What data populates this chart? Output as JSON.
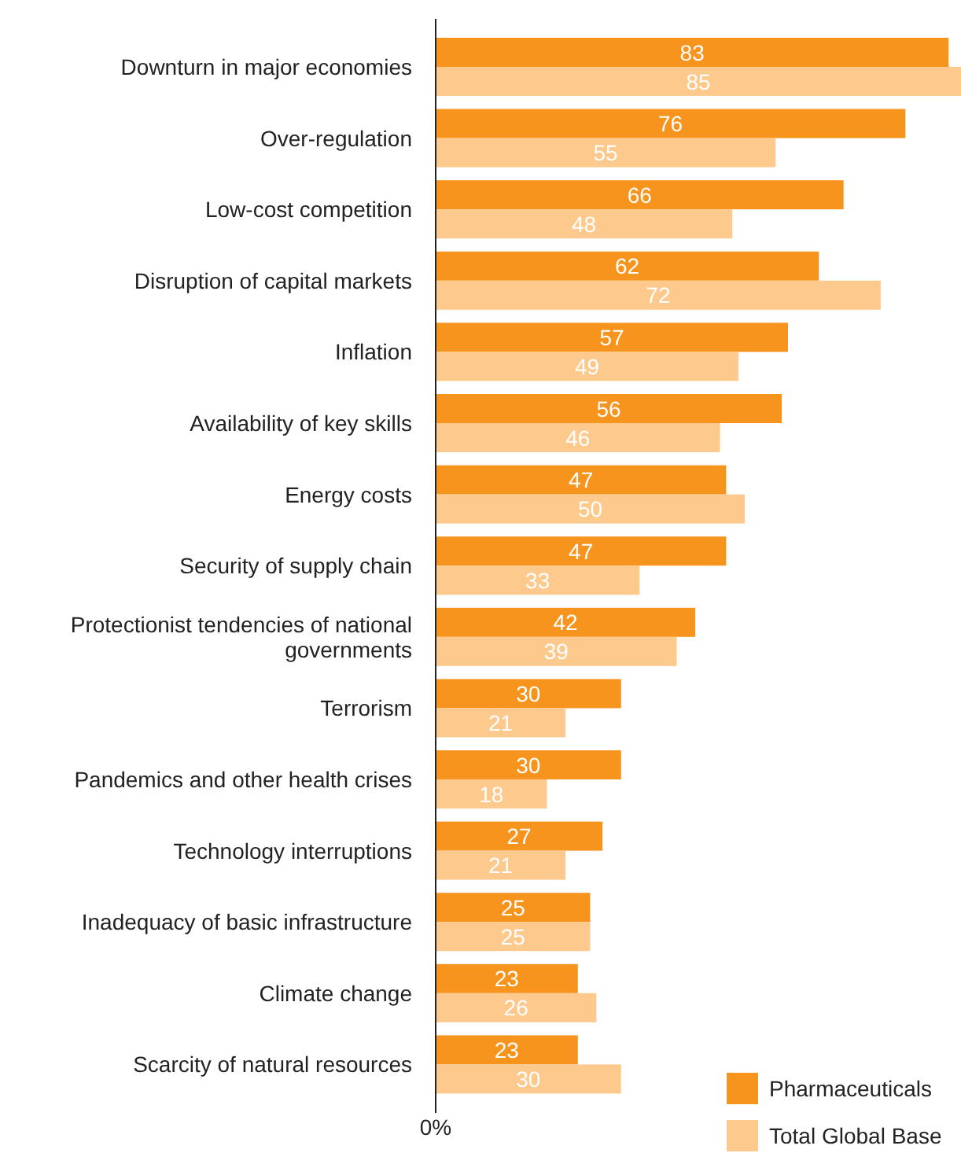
{
  "chart_data": {
    "type": "bar",
    "orientation": "horizontal",
    "categories": [
      "Downturn in major economies",
      "Over-regulation",
      "Low-cost competition",
      "Disruption of capital markets",
      "Inflation",
      "Availability of key skills",
      "Energy costs",
      "Security of supply chain",
      "Protectionist tendencies of national governments",
      "Terrorism",
      "Pandemics and other health crises",
      "Technology interruptions",
      "Inadequacy of basic infrastructure",
      "Climate change",
      "Scarcity of natural resources"
    ],
    "series": [
      {
        "name": "Pharmaceuticals",
        "color": "#f7941d",
        "values": [
          83,
          76,
          66,
          62,
          57,
          56,
          47,
          47,
          42,
          30,
          30,
          27,
          25,
          23,
          23
        ]
      },
      {
        "name": "Total Global Base",
        "color": "#fdc98c",
        "values": [
          85,
          55,
          48,
          72,
          49,
          46,
          50,
          33,
          39,
          21,
          18,
          21,
          25,
          26,
          30
        ]
      }
    ],
    "annotations": [
      "0%"
    ],
    "data_labels": true,
    "legend": "bottom right"
  }
}
